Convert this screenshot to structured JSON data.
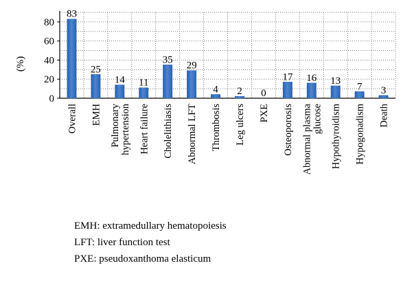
{
  "chart_data": {
    "type": "bar",
    "title": "",
    "xlabel": "",
    "ylabel": "(%)",
    "ylim": [
      0,
      90
    ],
    "yticks": [
      "0",
      "20",
      "40",
      "60",
      "80"
    ],
    "grid": "dotted",
    "legend": "none",
    "bar_color": "#3b76c4",
    "categories": [
      [
        "Overall"
      ],
      [
        "EMH"
      ],
      [
        "Pulmonary",
        "hypertension"
      ],
      [
        "Heart failure"
      ],
      [
        "Cholelithiasis"
      ],
      [
        "Abnormal LFT"
      ],
      [
        "Thrombosis"
      ],
      [
        "Leg ulcers"
      ],
      [
        "PXE"
      ],
      [
        "Osteoporosis"
      ],
      [
        "Abnormal plasma",
        "glucose"
      ],
      [
        "Hypothyroidism"
      ],
      [
        "Hypogonadism"
      ],
      [
        "Death"
      ]
    ],
    "values": [
      83,
      25,
      14,
      11,
      35,
      29,
      4,
      2,
      0,
      17,
      16,
      13,
      7,
      3
    ],
    "value_labels": [
      "83",
      "25",
      "14",
      "11",
      "35",
      "29",
      "4",
      "2",
      "0",
      "17",
      "16",
      "13",
      "7",
      "3"
    ]
  },
  "notes": [
    "EMH: extramedullary hematopoiesis",
    "LFT: liver function test",
    "PXE: pseudoxanthoma elasticum"
  ]
}
